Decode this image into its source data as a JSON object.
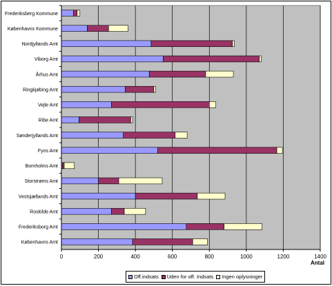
{
  "chart_data": {
    "type": "bar",
    "orientation": "horizontal",
    "stacked": true,
    "title": "",
    "xlabel": "Antal",
    "ylabel": "",
    "xlim": [
      0,
      1400
    ],
    "xticks": [
      0,
      200,
      400,
      600,
      800,
      1000,
      1200,
      1400
    ],
    "grid": true,
    "legend_position": "bottom",
    "plot_background": "#c0c0c0",
    "categories": [
      "Frederiksberg Kommune",
      "Københavns Kommune",
      "Nordjyllands Amt",
      "Viborg Amt",
      "Århus Amt",
      "Ringkjøbing Amt",
      "Vejle Amt",
      "Ribe Amt",
      "Sønderjyllands Amt",
      "Fyns Amt",
      "Bornholms Amt",
      "Storstrøms Amt",
      "Vestsjællands Amt",
      "Roskilde Amt",
      "Frederiksborg Amt",
      "Københavns Amt"
    ],
    "series": [
      {
        "name": "Off.indsats",
        "color": "#9999ff",
        "values": [
          65,
          140,
          485,
          550,
          475,
          345,
          270,
          95,
          335,
          520,
          5,
          200,
          400,
          270,
          675,
          385
        ]
      },
      {
        "name": "Uden for off. Indsats",
        "color": "#993366",
        "values": [
          20,
          115,
          440,
          520,
          305,
          155,
          530,
          280,
          280,
          645,
          10,
          110,
          335,
          70,
          205,
          325
        ]
      },
      {
        "name": "Ingen oplysninger",
        "color": "#ffffcc",
        "values": [
          15,
          105,
          10,
          10,
          150,
          10,
          35,
          10,
          65,
          30,
          55,
          235,
          150,
          115,
          205,
          80
        ]
      }
    ]
  }
}
